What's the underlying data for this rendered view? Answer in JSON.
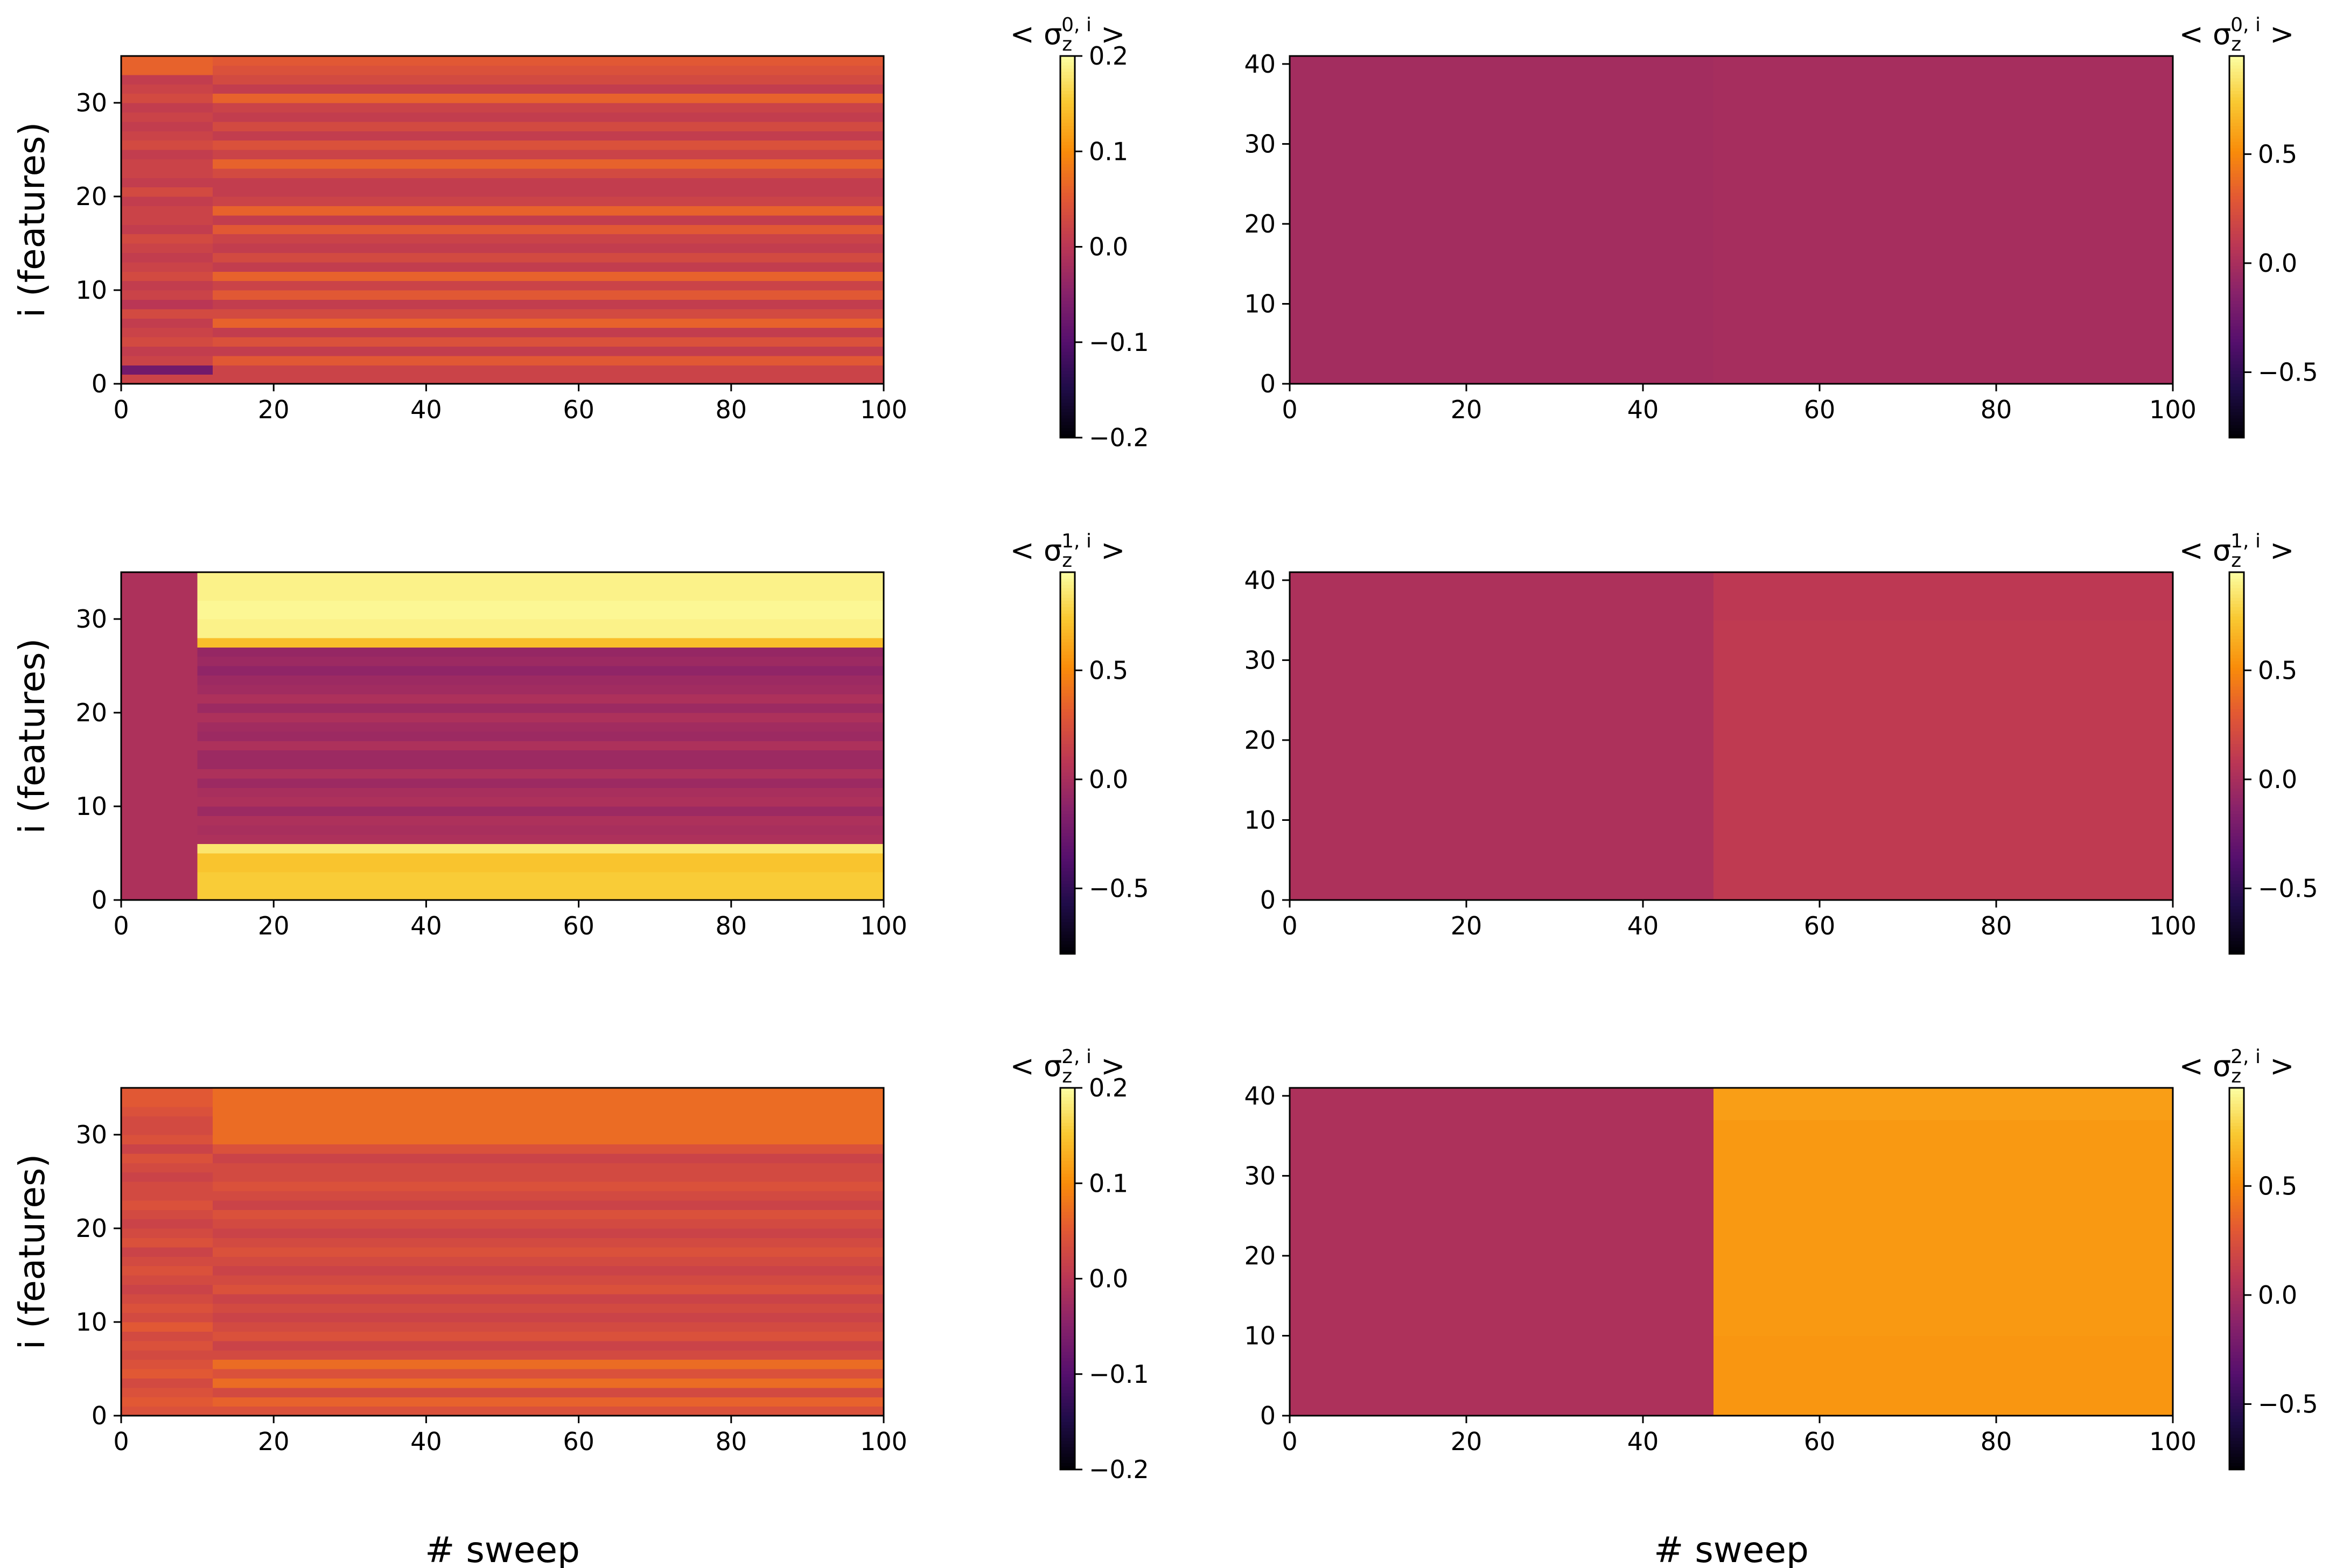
{
  "chart_data": [
    {
      "type": "heatmap",
      "ylabel": "i (features)",
      "xlabel": "",
      "xlim": [
        0,
        100
      ],
      "ylim": [
        0,
        35
      ],
      "xticks": [
        "0",
        "20",
        "40",
        "60",
        "80",
        "100"
      ],
      "yticks": [
        "0",
        "10",
        "20",
        "30"
      ],
      "colorbar": {
        "label_base": "< σ",
        "label_sub": "z",
        "label_sup": "0, i",
        "label_end": " >",
        "range": [
          -0.2,
          0.2
        ],
        "ticks": [
          "0.2",
          "0.1",
          "0.0",
          "−0.1",
          "−0.2"
        ],
        "tick_values": [
          0.2,
          0.1,
          0.0,
          -0.1,
          -0.2
        ]
      },
      "transition_sweep": 12,
      "before_values": [
        0.02,
        -0.07,
        0.02,
        0.01,
        0.03,
        0.02,
        0.01,
        0.03,
        0.0,
        0.02,
        0.01,
        0.03,
        0.02,
        0.01,
        0.02,
        0.03,
        0.01,
        0.02,
        0.02,
        0.01,
        0.03,
        0.01,
        0.02,
        0.02,
        0.01,
        0.03,
        0.02,
        0.01,
        0.02,
        0.01,
        0.03,
        0.02,
        0.01,
        0.06,
        0.06
      ],
      "after_values": [
        0.02,
        0.02,
        0.05,
        0.01,
        0.04,
        0.01,
        0.06,
        0.03,
        0.01,
        0.05,
        0.02,
        0.06,
        0.01,
        0.03,
        0.01,
        0.02,
        0.05,
        0.01,
        0.06,
        0.02,
        0.01,
        0.01,
        0.03,
        0.06,
        0.02,
        0.04,
        0.01,
        0.03,
        0.01,
        0.02,
        0.06,
        0.01,
        0.03,
        0.04,
        0.05
      ]
    },
    {
      "type": "heatmap",
      "ylabel": "",
      "xlabel": "",
      "xlim": [
        0,
        100
      ],
      "ylim": [
        0,
        41
      ],
      "xticks": [
        "0",
        "20",
        "40",
        "60",
        "80",
        "100"
      ],
      "yticks": [
        "0",
        "10",
        "20",
        "30",
        "40"
      ],
      "colorbar": {
        "label_base": "< σ",
        "label_sub": "z",
        "label_sup": "0, i",
        "label_end": " >",
        "range": [
          -0.8,
          0.95
        ],
        "ticks": [
          "0.5",
          "0.0",
          "−0.5"
        ],
        "tick_values": [
          0.5,
          0.0,
          -0.5
        ]
      },
      "transition_sweep": 48,
      "before_values": [
        -0.02,
        -0.02,
        -0.02,
        -0.02,
        -0.02,
        -0.02,
        -0.02,
        -0.02,
        -0.02,
        -0.02,
        -0.02,
        -0.02,
        -0.02,
        -0.02,
        -0.02,
        -0.02,
        -0.02,
        -0.02,
        -0.02,
        -0.02,
        -0.02,
        -0.02,
        -0.02,
        -0.02,
        -0.02,
        -0.02,
        -0.02,
        -0.02,
        -0.02,
        -0.02,
        -0.02,
        -0.02,
        -0.02,
        -0.02,
        -0.02,
        -0.02,
        -0.02,
        -0.02,
        -0.02,
        -0.02,
        -0.02
      ],
      "after_values": [
        -0.01,
        -0.01,
        -0.01,
        -0.01,
        -0.01,
        -0.01,
        -0.01,
        -0.01,
        -0.01,
        -0.01,
        -0.01,
        -0.01,
        -0.01,
        -0.01,
        -0.01,
        -0.01,
        -0.01,
        -0.01,
        -0.01,
        -0.01,
        -0.01,
        -0.01,
        -0.01,
        -0.01,
        -0.01,
        -0.01,
        -0.01,
        -0.01,
        -0.01,
        -0.01,
        -0.01,
        -0.01,
        -0.01,
        -0.01,
        -0.01,
        -0.01,
        -0.01,
        -0.01,
        -0.01,
        -0.01,
        -0.01
      ]
    },
    {
      "type": "heatmap",
      "ylabel": "i (features)",
      "xlabel": "",
      "xlim": [
        0,
        100
      ],
      "ylim": [
        0,
        35
      ],
      "xticks": [
        "0",
        "20",
        "40",
        "60",
        "80",
        "100"
      ],
      "yticks": [
        "0",
        "10",
        "20",
        "30"
      ],
      "colorbar": {
        "label_base": "< σ",
        "label_sub": "z",
        "label_sup": "1, i",
        "label_end": " >",
        "range": [
          -0.8,
          0.95
        ],
        "ticks": [
          "0.5",
          "0.0",
          "−0.5"
        ],
        "tick_values": [
          0.5,
          0.0,
          -0.5
        ]
      },
      "transition_sweep": 10,
      "before_values": [
        0.02,
        0.02,
        0.02,
        0.02,
        0.02,
        0.02,
        0.02,
        0.02,
        0.02,
        0.02,
        0.02,
        0.02,
        0.02,
        0.02,
        0.02,
        0.02,
        0.02,
        0.02,
        0.02,
        0.02,
        0.02,
        0.02,
        0.02,
        0.02,
        0.02,
        0.02,
        0.02,
        0.02,
        0.02,
        0.02,
        0.02,
        0.02,
        0.02,
        0.02,
        0.02
      ],
      "after_values": [
        0.75,
        0.75,
        0.75,
        0.72,
        0.72,
        0.85,
        0.02,
        0.0,
        0.02,
        -0.05,
        0.02,
        0.0,
        -0.05,
        0.02,
        -0.05,
        -0.05,
        0.02,
        -0.05,
        -0.03,
        0.02,
        -0.05,
        0.02,
        -0.03,
        -0.05,
        -0.1,
        -0.05,
        -0.08,
        0.7,
        0.9,
        0.9,
        0.92,
        0.92,
        0.9,
        0.9,
        0.9
      ]
    },
    {
      "type": "heatmap",
      "ylabel": "",
      "xlabel": "",
      "xlim": [
        0,
        100
      ],
      "ylim": [
        0,
        41
      ],
      "xticks": [
        "0",
        "20",
        "40",
        "60",
        "80",
        "100"
      ],
      "yticks": [
        "0",
        "10",
        "20",
        "30",
        "40"
      ],
      "colorbar": {
        "label_base": "< σ",
        "label_sub": "z",
        "label_sup": "1, i",
        "label_end": " >",
        "range": [
          -0.8,
          0.95
        ],
        "ticks": [
          "0.5",
          "0.0",
          "−0.5"
        ],
        "tick_values": [
          0.5,
          0.0,
          -0.5
        ]
      },
      "transition_sweep": 48,
      "before_values": [
        0.02,
        0.02,
        0.02,
        0.02,
        0.02,
        0.02,
        0.02,
        0.02,
        0.02,
        0.02,
        0.02,
        0.02,
        0.02,
        0.02,
        0.02,
        0.02,
        0.02,
        0.02,
        0.02,
        0.02,
        0.02,
        0.02,
        0.02,
        0.02,
        0.02,
        0.02,
        0.02,
        0.02,
        0.02,
        0.02,
        0.02,
        0.02,
        0.02,
        0.02,
        0.02,
        0.02,
        0.02,
        0.02,
        0.02,
        0.02,
        0.02
      ],
      "after_values": [
        0.1,
        0.1,
        0.1,
        0.1,
        0.1,
        0.1,
        0.1,
        0.1,
        0.1,
        0.1,
        0.1,
        0.1,
        0.1,
        0.1,
        0.1,
        0.1,
        0.1,
        0.1,
        0.1,
        0.1,
        0.1,
        0.1,
        0.1,
        0.1,
        0.1,
        0.1,
        0.1,
        0.1,
        0.1,
        0.1,
        0.1,
        0.1,
        0.1,
        0.1,
        0.1,
        0.09,
        0.09,
        0.09,
        0.09,
        0.09,
        0.09
      ]
    },
    {
      "type": "heatmap",
      "ylabel": "i (features)",
      "xlabel": "# sweep",
      "xlim": [
        0,
        100
      ],
      "ylim": [
        0,
        35
      ],
      "xticks": [
        "0",
        "20",
        "40",
        "60",
        "80",
        "100"
      ],
      "yticks": [
        "0",
        "10",
        "20",
        "30"
      ],
      "colorbar": {
        "label_base": "< σ",
        "label_sub": "z",
        "label_sup": "2, i",
        "label_end": " >",
        "range": [
          -0.2,
          0.2
        ],
        "ticks": [
          "0.2",
          "0.1",
          "0.0",
          "−0.1",
          "−0.2"
        ],
        "tick_values": [
          0.2,
          0.1,
          0.0,
          -0.1,
          -0.2
        ]
      },
      "transition_sweep": 12,
      "before_values": [
        0.04,
        0.05,
        0.04,
        0.03,
        0.05,
        0.04,
        0.03,
        0.04,
        0.03,
        0.05,
        0.03,
        0.04,
        0.03,
        0.02,
        0.03,
        0.04,
        0.03,
        0.02,
        0.04,
        0.03,
        0.02,
        0.03,
        0.04,
        0.03,
        0.03,
        0.02,
        0.03,
        0.04,
        0.02,
        0.04,
        0.03,
        0.03,
        0.04,
        0.05,
        0.05
      ],
      "after_values": [
        0.04,
        0.06,
        0.03,
        0.07,
        0.04,
        0.07,
        0.03,
        0.02,
        0.04,
        0.03,
        0.02,
        0.03,
        0.02,
        0.04,
        0.03,
        0.02,
        0.03,
        0.04,
        0.03,
        0.02,
        0.03,
        0.04,
        0.02,
        0.03,
        0.04,
        0.03,
        0.03,
        0.02,
        0.04,
        0.07,
        0.07,
        0.07,
        0.07,
        0.07,
        0.07
      ]
    },
    {
      "type": "heatmap",
      "ylabel": "",
      "xlabel": "# sweep",
      "xlim": [
        0,
        100
      ],
      "ylim": [
        0,
        41
      ],
      "xticks": [
        "0",
        "20",
        "40",
        "60",
        "80",
        "100"
      ],
      "yticks": [
        "0",
        "10",
        "20",
        "30",
        "40"
      ],
      "colorbar": {
        "label_base": "< σ",
        "label_sub": "z",
        "label_sup": "2, i",
        "label_end": " >",
        "range": [
          -0.8,
          0.95
        ],
        "ticks": [
          "0.5",
          "0.0",
          "−0.5"
        ],
        "tick_values": [
          0.5,
          0.0,
          -0.5
        ]
      },
      "transition_sweep": 48,
      "before_values": [
        0.02,
        0.02,
        0.02,
        0.02,
        0.02,
        0.02,
        0.02,
        0.02,
        0.02,
        0.02,
        0.02,
        0.02,
        0.02,
        0.02,
        0.02,
        0.02,
        0.02,
        0.02,
        0.02,
        0.02,
        0.02,
        0.02,
        0.02,
        0.02,
        0.02,
        0.02,
        0.02,
        0.02,
        0.02,
        0.02,
        0.02,
        0.02,
        0.02,
        0.02,
        0.02,
        0.02,
        0.02,
        0.02,
        0.02,
        0.02,
        0.02
      ],
      "after_values": [
        0.55,
        0.55,
        0.55,
        0.55,
        0.55,
        0.55,
        0.55,
        0.55,
        0.55,
        0.55,
        0.56,
        0.56,
        0.56,
        0.56,
        0.56,
        0.56,
        0.56,
        0.56,
        0.56,
        0.56,
        0.56,
        0.56,
        0.56,
        0.56,
        0.56,
        0.56,
        0.56,
        0.56,
        0.56,
        0.56,
        0.56,
        0.56,
        0.56,
        0.56,
        0.56,
        0.56,
        0.56,
        0.58,
        0.58,
        0.58,
        0.58
      ]
    }
  ]
}
